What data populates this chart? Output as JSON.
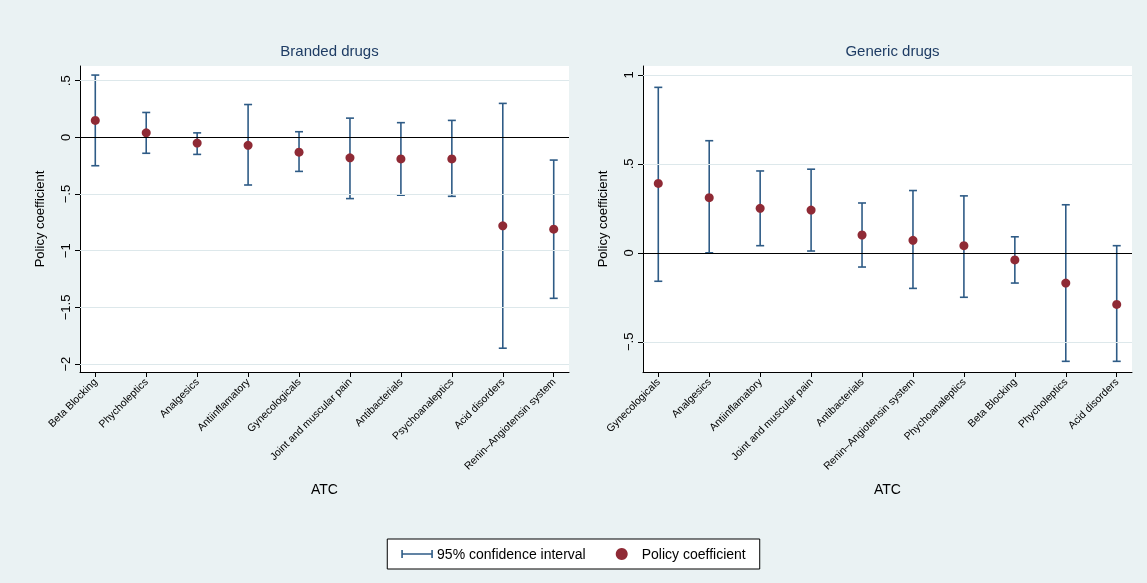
{
  "chart_data": [
    {
      "type": "scatter",
      "title": "Branded drugs",
      "xlabel": "ATC",
      "ylabel": "Policy coefficient",
      "categories": [
        "Beta Blocking",
        "Phycholeptics",
        "Analgesics",
        "Antiinflamatory",
        "Gynecologicals",
        "Joint and muscular pain",
        "Antibacterials",
        "Psychoanaleptics",
        "Acid disorders",
        "Renin–Angiotensin system"
      ],
      "series": [
        {
          "name": "Policy coefficient",
          "color": "#8f2a35",
          "values": [
            0.15,
            0.04,
            -0.05,
            -0.07,
            -0.13,
            -0.18,
            -0.19,
            -0.19,
            -0.78,
            -0.81
          ],
          "errors": [
            [
              -0.25,
              0.55
            ],
            [
              -0.14,
              0.22
            ],
            [
              -0.15,
              0.04
            ],
            [
              -0.42,
              0.29
            ],
            [
              -0.3,
              0.05
            ],
            [
              -0.54,
              0.17
            ],
            [
              -0.51,
              0.13
            ],
            [
              -0.52,
              0.15
            ],
            [
              -1.86,
              0.3
            ],
            [
              -1.42,
              -0.2
            ]
          ]
        }
      ],
      "annotations": [
        "95% confidence interval"
      ],
      "ylim": [
        -2.07,
        0.63
      ],
      "yticks": [
        {
          "value": -2,
          "label": "−2"
        },
        {
          "value": -1.5,
          "label": "−1.5"
        },
        {
          "value": -1,
          "label": "−1"
        },
        {
          "value": -0.5,
          "label": "−.5"
        },
        {
          "value": 0,
          "label": "0"
        },
        {
          "value": 0.5,
          "label": ".5"
        }
      ],
      "ref_lines": [
        {
          "axis": "y",
          "value": 0,
          "color": "#000000"
        }
      ],
      "grid": "y",
      "marker": "circle",
      "legend": "bottom"
    },
    {
      "type": "scatter",
      "title": "Generic drugs",
      "xlabel": "ATC",
      "ylabel": "Policy coefficient",
      "categories": [
        "Gynecologicals",
        "Analgesics",
        "Antiinflamatory",
        "Joint and muscular pain",
        "Antibacterials",
        "Renin–Angiotensin system",
        "Phychoanaleptics",
        "Beta Blocking",
        "Phycholeptics",
        "Acid disorders"
      ],
      "series": [
        {
          "color": "#8f2a35",
          "values": [
            0.39,
            0.31,
            0.25,
            0.24,
            0.1,
            0.07,
            0.04,
            -0.04,
            -0.17,
            -0.29
          ],
          "errors": [
            [
              -0.16,
              0.93
            ],
            [
              0.0,
              0.63
            ],
            [
              0.04,
              0.46
            ],
            [
              0.01,
              0.47
            ],
            [
              -0.08,
              0.28
            ],
            [
              -0.2,
              0.35
            ],
            [
              -0.25,
              0.32
            ],
            [
              -0.17,
              0.09
            ],
            [
              -0.61,
              0.27
            ],
            [
              -0.61,
              0.04
            ]
          ]
        }
      ],
      "ylim": [
        -0.67,
        1.05
      ],
      "yticks": [
        {
          "value": -0.5,
          "label": "−.5"
        },
        {
          "value": 0,
          "label": "0"
        },
        {
          "value": 0.5,
          "label": ".5"
        },
        1
      ],
      "ref_lines": [
        {
          "axis": "y",
          "value": 0,
          "color": "#000000"
        }
      ],
      "grid": "y",
      "marker": "circle"
    }
  ]
}
